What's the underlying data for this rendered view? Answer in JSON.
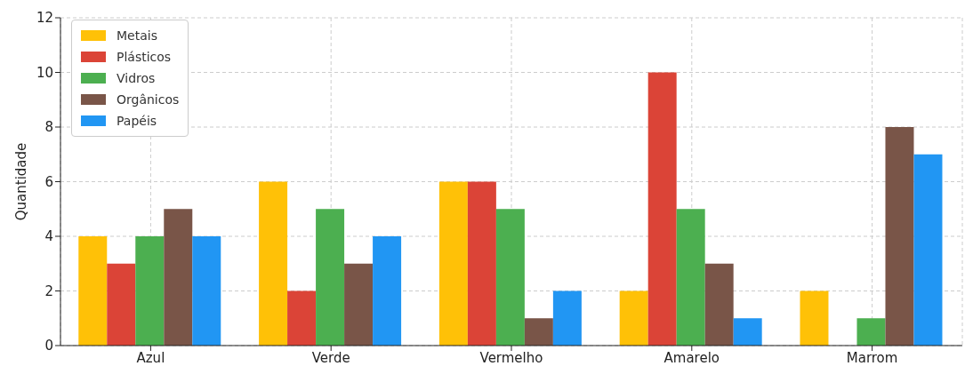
{
  "chart_data": {
    "type": "bar",
    "ylabel": "Quantidade",
    "categories": [
      "Azul",
      "Verde",
      "Vermelho",
      "Amarelo",
      "Marrom"
    ],
    "series": [
      {
        "name": "Metais",
        "color": "#ffc107",
        "values": [
          4,
          6,
          6,
          2,
          2
        ]
      },
      {
        "name": "Plásticos",
        "color": "#db4437",
        "values": [
          3,
          2,
          6,
          10,
          0
        ]
      },
      {
        "name": "Vidros",
        "color": "#4caf50",
        "values": [
          4,
          5,
          5,
          5,
          1
        ]
      },
      {
        "name": "Orgânicos",
        "color": "#795548",
        "values": [
          5,
          3,
          1,
          3,
          8
        ]
      },
      {
        "name": "Papéis",
        "color": "#2196f3",
        "values": [
          4,
          4,
          2,
          1,
          7
        ]
      }
    ],
    "ylim": [
      0,
      12
    ],
    "yticks": [
      0,
      2,
      4,
      6,
      8,
      10,
      12
    ],
    "grid": true,
    "legend": "top left"
  }
}
